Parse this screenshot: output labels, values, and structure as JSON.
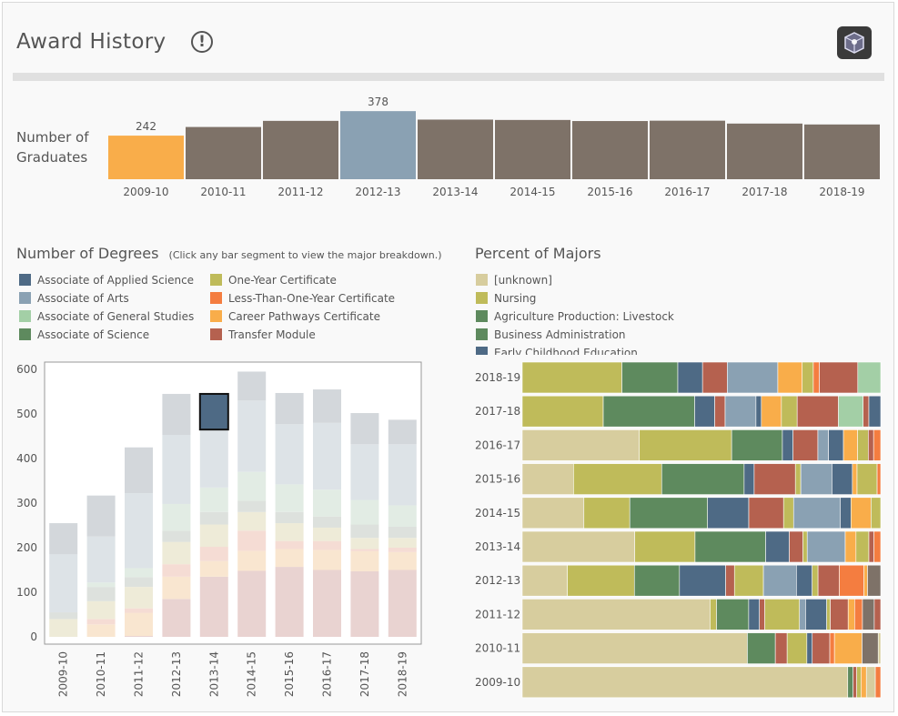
{
  "header": {
    "title": "Award History",
    "info_icon": "info-icon",
    "logo_icon": "cube-logo-icon"
  },
  "graduates": {
    "label_line1": "Number of",
    "label_line2": "Graduates",
    "years": [
      "2009-10",
      "2010-11",
      "2011-12",
      "2012-13",
      "2013-14",
      "2014-15",
      "2015-16",
      "2016-17",
      "2017-18",
      "2018-19"
    ],
    "values": [
      242,
      290,
      324,
      378,
      331,
      329,
      323,
      325,
      309,
      304
    ],
    "labels": [
      "242",
      "",
      "",
      "378",
      "",
      "",
      "",
      "",
      "",
      ""
    ],
    "colors": [
      "#f9ad4a",
      "#7e7268",
      "#7e7268",
      "#8aa1b3",
      "#7e7268",
      "#7e7268",
      "#7e7268",
      "#7e7268",
      "#7e7268",
      "#7e7268"
    ]
  },
  "degrees": {
    "title": "Number of Degrees",
    "note": "(Click any bar segment to view the major breakdown.)",
    "legend": [
      {
        "label": "Associate of Applied Science",
        "color": "#4e6a85"
      },
      {
        "label": "Associate of Arts",
        "color": "#8aa1b3"
      },
      {
        "label": "Associate of General Studies",
        "color": "#a3cfa6"
      },
      {
        "label": "Associate of Science",
        "color": "#5e8a5e"
      },
      {
        "label": "One-Year Certificate",
        "color": "#bfbb5a"
      },
      {
        "label": "Less-Than-One-Year Certificate",
        "color": "#f47d40"
      },
      {
        "label": "Career Pathways Certificate",
        "color": "#f9ad4a"
      },
      {
        "label": "Transfer Module",
        "color": "#b5614f"
      }
    ],
    "chart_data": {
      "type": "bar",
      "stacked": true,
      "categories": [
        "2009-10",
        "2010-11",
        "2011-12",
        "2012-13",
        "2013-14",
        "2014-15",
        "2015-16",
        "2016-17",
        "2017-18",
        "2018-19"
      ],
      "ylim": [
        0,
        600
      ],
      "yticks": [
        0,
        100,
        200,
        300,
        400,
        500,
        600
      ],
      "selected": {
        "category": "2013-14",
        "series": "Associate of Applied Science"
      },
      "series": [
        {
          "name": "Transfer Module",
          "color": "#e9d3d1",
          "values": [
            0,
            0,
            2,
            85,
            135,
            148,
            157,
            150,
            147,
            150
          ]
        },
        {
          "name": "Career Pathways Certificate",
          "color": "#f9e6d0",
          "values": [
            0,
            28,
            52,
            50,
            35,
            45,
            40,
            45,
            45,
            40
          ]
        },
        {
          "name": "Less-Than-One-Year Certificate",
          "color": "#f5dcd4",
          "values": [
            0,
            12,
            10,
            28,
            32,
            45,
            18,
            20,
            5,
            10
          ]
        },
        {
          "name": "One-Year Certificate",
          "color": "#eeebd8",
          "values": [
            40,
            40,
            48,
            50,
            50,
            42,
            40,
            30,
            25,
            22
          ]
        },
        {
          "name": "Associate of Science",
          "color": "#dde1dd",
          "values": [
            15,
            32,
            22,
            25,
            28,
            25,
            25,
            25,
            30,
            25
          ]
        },
        {
          "name": "Associate of General Studies",
          "color": "#e2ece4",
          "values": [
            0,
            10,
            20,
            60,
            55,
            65,
            62,
            60,
            55,
            48
          ]
        },
        {
          "name": "Associate of Arts",
          "color": "#dde3e7",
          "values": [
            130,
            103,
            168,
            155,
            130,
            160,
            135,
            150,
            125,
            137
          ]
        },
        {
          "name": "Associate of Applied Science",
          "color": "#d3d7db",
          "values": [
            70,
            92,
            103,
            92,
            80,
            65,
            70,
            75,
            70,
            55
          ]
        }
      ],
      "selected_color": "#4e6a85"
    }
  },
  "majors": {
    "title": "Percent of Majors",
    "legend": [
      {
        "label": "[unknown]",
        "color": "#d7cd9e"
      },
      {
        "label": "Nursing",
        "color": "#bfbb5a"
      },
      {
        "label": "Agriculture Production: Livestock",
        "color": "#5e8a5e"
      },
      {
        "label": "Business Administration",
        "color": "#5e8a5e"
      },
      {
        "label": "Early Childhood Education",
        "color": "#4e6a85"
      }
    ],
    "chart_data": {
      "type": "bar",
      "orientation": "horizontal",
      "stacked_percent": true,
      "categories": [
        "2018-19",
        "2017-18",
        "2016-17",
        "2015-16",
        "2014-15",
        "2013-14",
        "2012-13",
        "2011-12",
        "2010-11",
        "2009-10"
      ],
      "rows": [
        [
          [
            "#bfbb5a",
            27.8
          ],
          [
            "#5e8a5e",
            15.6
          ],
          [
            "#4e6a85",
            6.9
          ],
          [
            "#b5614f",
            6.9
          ],
          [
            "#8aa1b3",
            14.1
          ],
          [
            "#f9ad4a",
            6.8
          ],
          [
            "#bfbb5a",
            3.1
          ],
          [
            "#f47d40",
            1.7
          ],
          [
            "#b5614f",
            10.7
          ],
          [
            "#a3cfa6",
            6.4
          ]
        ],
        [
          [
            "#bfbb5a",
            22.6
          ],
          [
            "#5e8a5e",
            25.5
          ],
          [
            "#4e6a85",
            5.6
          ],
          [
            "#b5614f",
            2.9
          ],
          [
            "#8aa1b3",
            8.6
          ],
          [
            "#4e6a85",
            1.5
          ],
          [
            "#f9ad4a",
            5.6
          ],
          [
            "#bfbb5a",
            4.4
          ],
          [
            "#b5614f",
            11.5
          ],
          [
            "#a3cfa6",
            6.9
          ],
          [
            "#b5614f",
            1.6
          ],
          [
            "#4e6a85",
            3.3
          ]
        ],
        [
          [
            "#d7cd9e",
            33.0
          ],
          [
            "#bfbb5a",
            26.0
          ],
          [
            "#5e8a5e",
            14.3
          ],
          [
            "#4e6a85",
            3.0
          ],
          [
            "#b5614f",
            7.0
          ],
          [
            "#8aa1b3",
            3.0
          ],
          [
            "#4e6a85",
            4.2
          ],
          [
            "#f9ad4a",
            4.0
          ],
          [
            "#bfbb5a",
            3.0
          ],
          [
            "#b5614f",
            1.5
          ],
          [
            "#f47d40",
            2.0
          ]
        ],
        [
          [
            "#d7cd9e",
            14.3
          ],
          [
            "#bfbb5a",
            24.6
          ],
          [
            "#5e8a5e",
            23.0
          ],
          [
            "#4e6a85",
            2.8
          ],
          [
            "#b5614f",
            11.5
          ],
          [
            "#bfbb5a",
            1.5
          ],
          [
            "#8aa1b3",
            8.7
          ],
          [
            "#4e6a85",
            5.7
          ],
          [
            "#f9ad4a",
            1.3
          ],
          [
            "#bfbb5a",
            5.6
          ],
          [
            "#f47d40",
            1.0
          ]
        ],
        [
          [
            "#d7cd9e",
            17.2
          ],
          [
            "#bfbb5a",
            12.8
          ],
          [
            "#5e8a5e",
            21.7
          ],
          [
            "#4e6a85",
            11.5
          ],
          [
            "#b5614f",
            9.7
          ],
          [
            "#bfbb5a",
            2.8
          ],
          [
            "#8aa1b3",
            13.0
          ],
          [
            "#4e6a85",
            3.0
          ],
          [
            "#f9ad4a",
            5.6
          ],
          [
            "#bfbb5a",
            2.7
          ]
        ],
        [
          [
            "#d7cd9e",
            31.4
          ],
          [
            "#bfbb5a",
            16.8
          ],
          [
            "#5e8a5e",
            19.7
          ],
          [
            "#4e6a85",
            6.6
          ],
          [
            "#b5614f",
            3.8
          ],
          [
            "#bfbb5a",
            1.2
          ],
          [
            "#8aa1b3",
            10.6
          ],
          [
            "#f9ad4a",
            3.0
          ],
          [
            "#bfbb5a",
            3.6
          ],
          [
            "#b5614f",
            1.4
          ],
          [
            "#f47d40",
            1.9
          ]
        ],
        [
          [
            "#d7cd9e",
            12.3
          ],
          [
            "#bfbb5a",
            18.3
          ],
          [
            "#5e8a5e",
            12.3
          ],
          [
            "#4e6a85",
            12.6
          ],
          [
            "#b5614f",
            2.4
          ],
          [
            "#bfbb5a",
            7.9
          ],
          [
            "#8aa1b3",
            9.0
          ],
          [
            "#4e6a85",
            4.3
          ],
          [
            "#bfbb5a",
            1.6
          ],
          [
            "#b5614f",
            5.8
          ],
          [
            "#f47d40",
            6.7
          ],
          [
            "#f9ad4a",
            1.0
          ],
          [
            "#7e7268",
            3.6
          ]
        ],
        [
          [
            "#d7cd9e",
            52.5
          ],
          [
            "#bfbb5a",
            1.8
          ],
          [
            "#5e8a5e",
            9.0
          ],
          [
            "#4e6a85",
            3.0
          ],
          [
            "#b5614f",
            1.5
          ],
          [
            "#bfbb5a",
            9.7
          ],
          [
            "#8aa1b3",
            1.7
          ],
          [
            "#4e6a85",
            5.9
          ],
          [
            "#bfbb5a",
            1.0
          ],
          [
            "#b5614f",
            5.0
          ],
          [
            "#f9ad4a",
            1.8
          ],
          [
            "#f47d40",
            2.2
          ],
          [
            "#7e7268",
            3.3
          ],
          [
            "#b5614f",
            1.8
          ]
        ],
        [
          [
            "#d7cd9e",
            62.8
          ],
          [
            "#5e8a5e",
            7.8
          ],
          [
            "#b5614f",
            3.3
          ],
          [
            "#bfbb5a",
            5.5
          ],
          [
            "#4e6a85",
            1.5
          ],
          [
            "#b5614f",
            4.9
          ],
          [
            "#f47d40",
            1.3
          ],
          [
            "#f9ad4a",
            7.7
          ],
          [
            "#7e7268",
            4.5
          ],
          [
            "#d7cd9e",
            0.7
          ]
        ],
        [
          [
            "#d7cd9e",
            90.8
          ],
          [
            "#5e8a5e",
            1.5
          ],
          [
            "#b5614f",
            1.0
          ],
          [
            "#bfbb5a",
            1.2
          ],
          [
            "#f9ad4a",
            1.5
          ],
          [
            "#d7cd9e",
            2.5
          ],
          [
            "#f47d40",
            1.5
          ]
        ]
      ]
    }
  }
}
